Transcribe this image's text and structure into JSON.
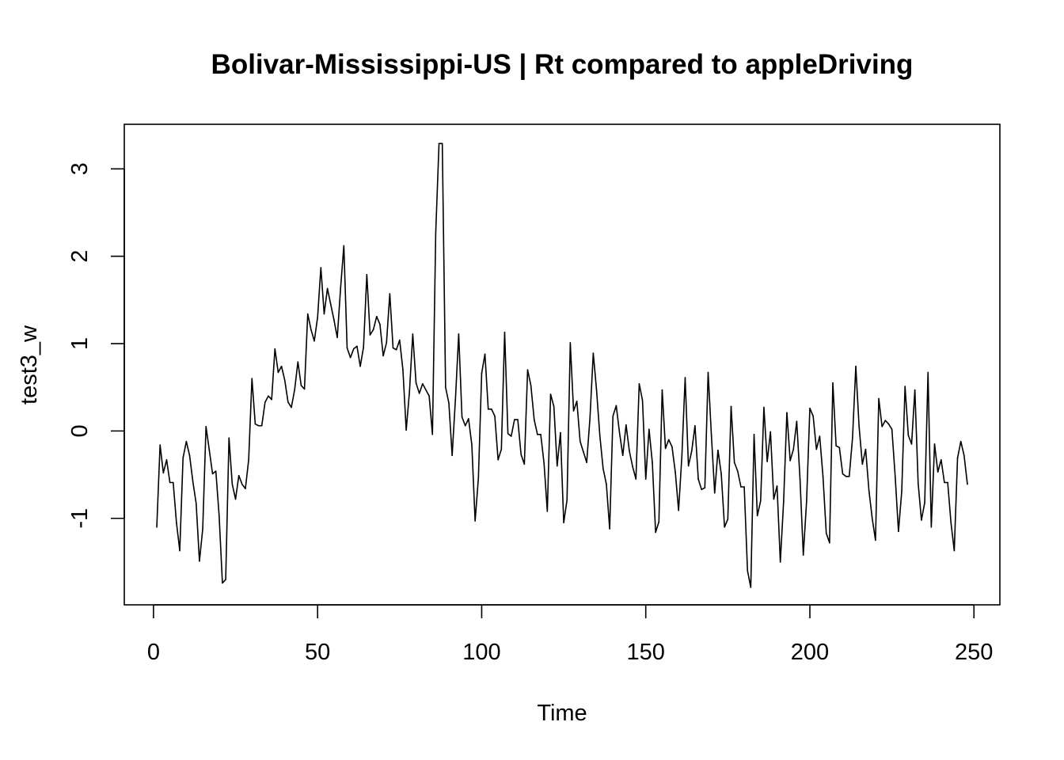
{
  "chart_data": {
    "type": "line",
    "title": "Bolivar-Mississippi-US | Rt compared to appleDriving",
    "xlabel": "Time",
    "ylabel": "test3_w",
    "xlim": [
      -8.9,
      257.9
    ],
    "ylim": [
      -1.99,
      3.51
    ],
    "xticks": [
      0,
      50,
      100,
      150,
      200,
      250
    ],
    "xtick_labels": [
      "0",
      "50",
      "100",
      "150",
      "200",
      "250"
    ],
    "yticks": [
      -1,
      0,
      1,
      2,
      3
    ],
    "ytick_labels": [
      "-1",
      "0",
      "1",
      "2",
      "3"
    ],
    "grid": false,
    "line_color": "#000000",
    "series": [
      {
        "x": [
          1,
          2,
          3,
          4,
          5,
          6,
          7,
          8,
          9,
          10,
          11,
          12,
          13,
          14,
          15,
          16,
          17,
          18,
          19,
          20,
          21,
          22,
          23,
          24,
          25,
          26,
          27,
          28,
          29,
          30,
          31,
          32,
          33,
          34,
          35,
          36,
          37,
          38,
          39,
          40,
          41,
          42,
          43,
          44,
          45,
          46,
          47,
          48,
          49,
          50,
          51,
          52,
          53,
          54,
          55,
          56,
          57,
          58,
          59,
          60,
          61,
          62,
          63,
          64,
          65,
          66,
          67,
          68,
          69,
          70,
          71,
          72,
          73,
          74,
          75,
          76,
          77,
          78,
          79,
          80,
          81,
          82,
          83,
          84,
          85,
          86,
          87,
          88,
          89,
          90,
          91,
          92,
          93,
          94,
          95,
          96,
          97,
          98,
          99,
          100,
          101,
          102,
          103,
          104,
          105,
          106,
          107,
          108,
          109,
          110,
          111,
          112,
          113,
          114,
          115,
          116,
          117,
          118,
          119,
          120,
          121,
          122,
          123,
          124,
          125,
          126,
          127,
          128,
          129,
          130,
          131,
          132,
          133,
          134,
          135,
          136,
          137,
          138,
          139,
          140,
          141,
          142,
          143,
          144,
          145,
          146,
          147,
          148,
          149,
          150,
          151,
          152,
          153,
          154,
          155,
          156,
          157,
          158,
          159,
          160,
          161,
          162,
          163,
          164,
          165,
          166,
          167,
          168,
          169,
          170,
          171,
          172,
          173,
          174,
          175,
          176,
          177,
          178,
          179,
          180,
          181,
          182,
          183,
          184,
          185,
          186,
          187,
          188,
          189,
          190,
          191,
          192,
          193,
          194,
          195,
          196,
          197,
          198,
          199,
          200,
          201,
          202,
          203,
          204,
          205,
          206,
          207,
          208,
          209,
          210,
          211,
          212,
          213,
          214,
          215,
          216,
          217,
          218,
          219,
          220,
          221,
          222,
          223,
          224,
          225,
          226,
          227,
          228,
          229,
          230,
          231,
          232,
          233,
          234,
          235,
          236,
          237,
          238,
          239,
          240,
          241,
          242,
          243,
          244,
          245,
          246,
          247,
          248
        ],
        "y": [
          -1.1,
          -0.16,
          -0.48,
          -0.33,
          -0.59,
          -0.59,
          -1.05,
          -1.37,
          -0.31,
          -0.12,
          -0.28,
          -0.58,
          -0.83,
          -1.49,
          -1.12,
          0.05,
          -0.22,
          -0.49,
          -0.46,
          -0.97,
          -1.74,
          -1.7,
          -0.08,
          -0.61,
          -0.78,
          -0.51,
          -0.61,
          -0.66,
          -0.33,
          0.6,
          0.08,
          0.06,
          0.06,
          0.33,
          0.4,
          0.36,
          0.94,
          0.67,
          0.74,
          0.58,
          0.33,
          0.27,
          0.47,
          0.79,
          0.52,
          0.48,
          1.34,
          1.16,
          1.03,
          1.3,
          1.87,
          1.34,
          1.63,
          1.45,
          1.27,
          1.07,
          1.63,
          2.12,
          0.95,
          0.84,
          0.94,
          0.97,
          0.74,
          0.96,
          1.79,
          1.1,
          1.16,
          1.31,
          1.22,
          0.86,
          1.01,
          1.57,
          0.95,
          0.93,
          1.04,
          0.7,
          0.01,
          0.45,
          1.11,
          0.55,
          0.43,
          0.54,
          0.47,
          0.4,
          -0.04,
          2.27,
          3.29,
          3.29,
          0.5,
          0.32,
          -0.28,
          0.36,
          1.11,
          0.16,
          0.06,
          0.14,
          -0.16,
          -1.03,
          -0.54,
          0.66,
          0.88,
          0.25,
          0.25,
          0.17,
          -0.33,
          -0.21,
          1.13,
          -0.03,
          -0.06,
          0.13,
          0.13,
          -0.27,
          -0.38,
          0.7,
          0.52,
          0.13,
          -0.04,
          -0.04,
          -0.37,
          -0.92,
          0.42,
          0.28,
          -0.4,
          -0.02,
          -1.05,
          -0.79,
          1.01,
          0.23,
          0.34,
          -0.12,
          -0.24,
          -0.36,
          0.15,
          0.89,
          0.47,
          -0.05,
          -0.43,
          -0.61,
          -1.12,
          0.17,
          0.29,
          -0.02,
          -0.28,
          0.07,
          -0.23,
          -0.41,
          -0.55,
          0.54,
          0.35,
          -0.55,
          0.02,
          -0.36,
          -1.16,
          -1.04,
          0.47,
          -0.2,
          -0.1,
          -0.18,
          -0.47,
          -0.91,
          -0.29,
          0.61,
          -0.4,
          -0.23,
          0.06,
          -0.55,
          -0.67,
          -0.65,
          0.67,
          -0.05,
          -0.71,
          -0.22,
          -0.49,
          -1.1,
          -1.01,
          0.28,
          -0.36,
          -0.46,
          -0.64,
          -0.64,
          -1.6,
          -1.79,
          -0.04,
          -0.97,
          -0.8,
          0.27,
          -0.35,
          -0.01,
          -0.78,
          -0.63,
          -1.5,
          -0.81,
          0.21,
          -0.34,
          -0.21,
          0.11,
          -0.55,
          -1.42,
          -0.81,
          0.26,
          0.17,
          -0.21,
          -0.06,
          -0.52,
          -1.17,
          -1.28,
          0.55,
          -0.17,
          -0.19,
          -0.49,
          -0.52,
          -0.52,
          -0.08,
          0.74,
          0.05,
          -0.38,
          -0.21,
          -0.68,
          -1.0,
          -1.25,
          0.37,
          0.05,
          0.12,
          0.08,
          0.02,
          -0.52,
          -1.15,
          -0.69,
          0.51,
          -0.05,
          -0.15,
          0.47,
          -0.6,
          -1.02,
          -0.82,
          0.67,
          -1.1,
          -0.15,
          -0.47,
          -0.33,
          -0.59,
          -0.59,
          -1.05,
          -1.37,
          -0.31,
          -0.12,
          -0.28,
          -0.61
        ]
      }
    ]
  }
}
